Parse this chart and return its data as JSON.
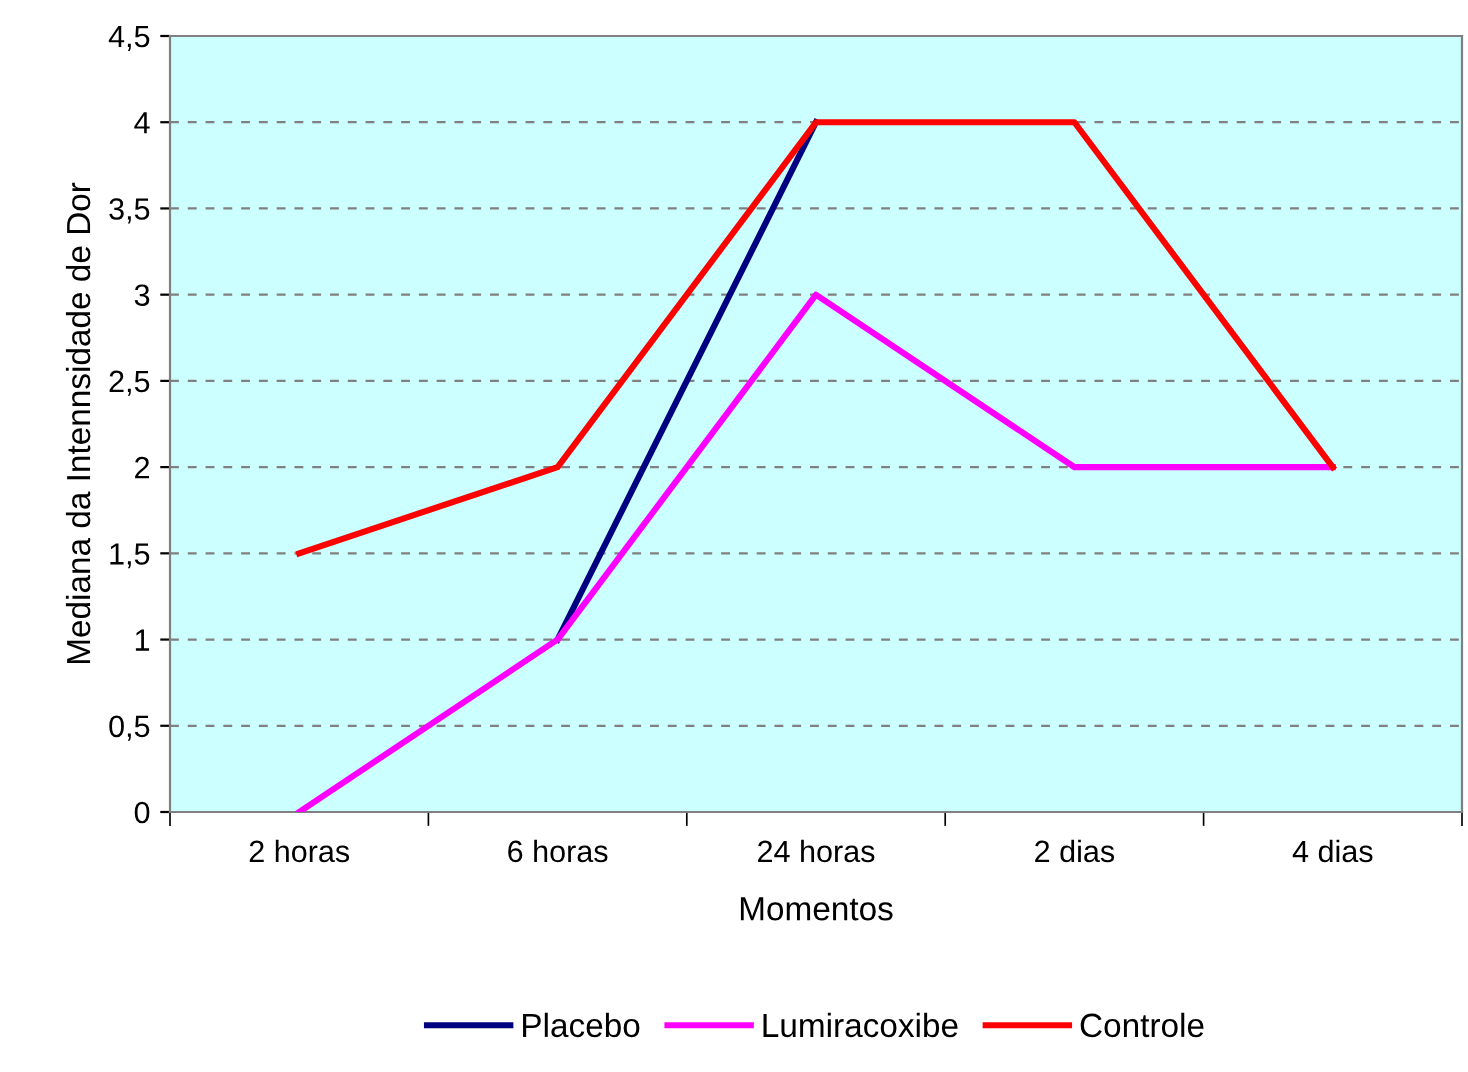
{
  "chart_data": {
    "type": "line",
    "xlabel": "Momentos",
    "ylabel": "Mediana da Intennsidade de Dor",
    "categories": [
      "2 horas",
      "6 horas",
      "24 horas",
      "2 dias",
      "4 dias"
    ],
    "series": [
      {
        "name": "Placebo",
        "color": "#000080",
        "values": [
          null,
          1,
          4,
          null,
          null
        ]
      },
      {
        "name": "Lumiracoxibe",
        "color": "#ff00ff",
        "values": [
          0,
          1,
          3,
          2,
          2
        ]
      },
      {
        "name": "Controle",
        "color": "#ff0000",
        "values": [
          1.5,
          2,
          4,
          4,
          2
        ]
      }
    ],
    "ylim": [
      0,
      4.5
    ],
    "yticks": [
      0,
      {
        "value": 0.5,
        "label": "0,5"
      },
      1,
      {
        "value": 1.5,
        "label": "1,5"
      },
      2,
      {
        "value": 2.5,
        "label": "2,5"
      },
      3,
      {
        "value": 3.5,
        "label": "3,5"
      },
      4,
      {
        "value": 4.5,
        "label": "4,5"
      }
    ],
    "grid": "y",
    "legend": "bottom",
    "marker": "none",
    "line_style": "solid"
  }
}
